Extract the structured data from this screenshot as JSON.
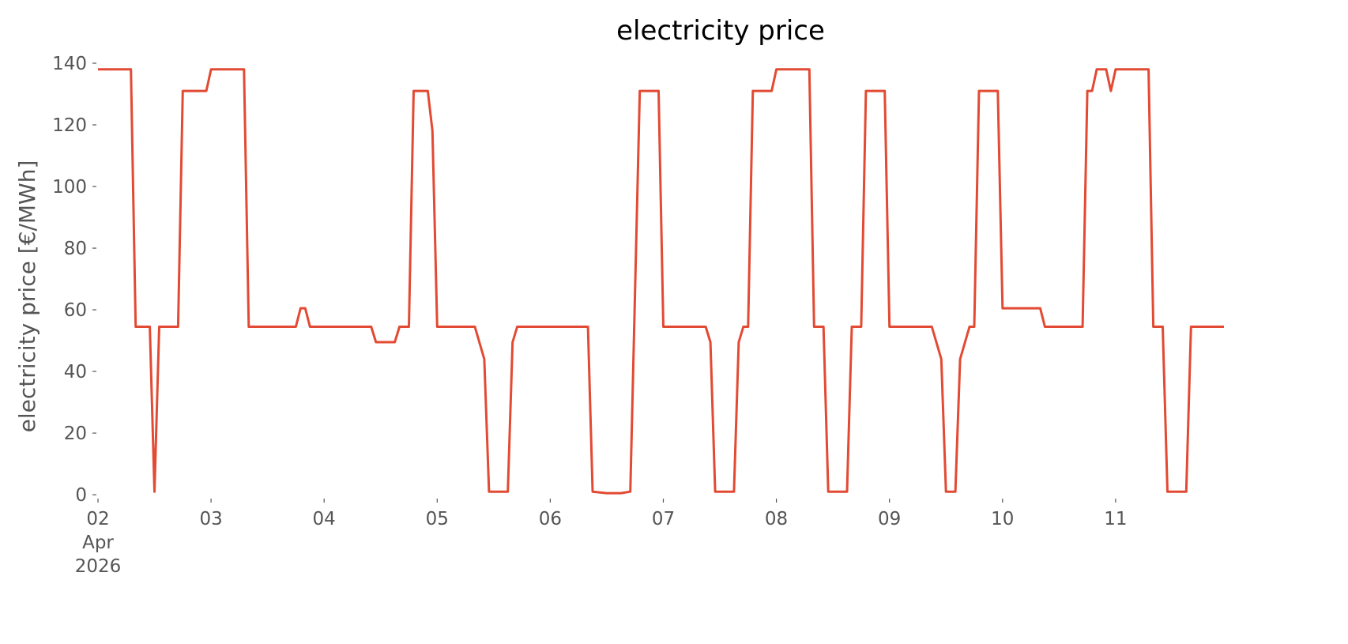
{
  "chart_data": {
    "type": "line",
    "title": "electricity price",
    "ylabel": "electricity price [€/MWh]",
    "x": [
      "2026-04-02T00:00",
      "2026-04-02T07:00",
      "2026-04-02T08:00",
      "2026-04-02T11:00",
      "2026-04-02T12:00",
      "2026-04-02T13:00",
      "2026-04-02T17:00",
      "2026-04-02T18:00",
      "2026-04-02T23:00",
      "2026-04-03T00:00",
      "2026-04-03T07:00",
      "2026-04-03T08:00",
      "2026-04-03T18:00",
      "2026-04-03T19:00",
      "2026-04-03T20:00",
      "2026-04-03T21:00",
      "2026-04-04T10:00",
      "2026-04-04T11:00",
      "2026-04-04T15:00",
      "2026-04-04T16:00",
      "2026-04-04T18:00",
      "2026-04-04T19:00",
      "2026-04-04T22:00",
      "2026-04-04T23:00",
      "2026-04-05T00:00",
      "2026-04-05T08:00",
      "2026-04-05T10:00",
      "2026-04-05T11:00",
      "2026-04-05T15:00",
      "2026-04-05T16:00",
      "2026-04-05T17:00",
      "2026-04-06T08:00",
      "2026-04-06T09:00",
      "2026-04-06T12:00",
      "2026-04-06T15:00",
      "2026-04-06T17:00",
      "2026-04-06T19:00",
      "2026-04-06T23:00",
      "2026-04-07T00:00",
      "2026-04-07T09:00",
      "2026-04-07T10:00",
      "2026-04-07T11:00",
      "2026-04-07T15:00",
      "2026-04-07T16:00",
      "2026-04-07T17:00",
      "2026-04-07T18:00",
      "2026-04-07T19:00",
      "2026-04-07T23:00",
      "2026-04-08T00:00",
      "2026-04-08T07:00",
      "2026-04-08T08:00",
      "2026-04-08T10:00",
      "2026-04-08T11:00",
      "2026-04-08T15:00",
      "2026-04-08T16:00",
      "2026-04-08T18:00",
      "2026-04-08T19:00",
      "2026-04-08T23:00",
      "2026-04-09T00:00",
      "2026-04-09T09:00",
      "2026-04-09T11:00",
      "2026-04-09T12:00",
      "2026-04-09T14:00",
      "2026-04-09T15:00",
      "2026-04-09T17:00",
      "2026-04-09T18:00",
      "2026-04-09T19:00",
      "2026-04-09T23:00",
      "2026-04-10T00:00",
      "2026-04-10T08:00",
      "2026-04-10T09:00",
      "2026-04-10T17:00",
      "2026-04-10T18:00",
      "2026-04-10T19:00",
      "2026-04-10T20:00",
      "2026-04-10T22:00",
      "2026-04-10T23:00",
      "2026-04-11T00:00",
      "2026-04-11T07:00",
      "2026-04-11T08:00",
      "2026-04-11T10:00",
      "2026-04-11T11:00",
      "2026-04-11T15:00",
      "2026-04-11T16:00",
      "2026-04-11T23:00"
    ],
    "series": [
      {
        "color": "#e24a33",
        "values": [
          138,
          138,
          54.5,
          54.5,
          1,
          54.5,
          54.5,
          131,
          131,
          138,
          138,
          54.5,
          54.5,
          60.5,
          60.5,
          54.5,
          54.5,
          49.5,
          49.5,
          54.5,
          54.5,
          131,
          131,
          118,
          54.5,
          54.5,
          44,
          1,
          1,
          49.5,
          54.5,
          54.5,
          1,
          0.5,
          0.5,
          1,
          131,
          131,
          54.5,
          54.5,
          49.5,
          1,
          1,
          49.5,
          54.5,
          54.5,
          131,
          131,
          138,
          138,
          54.5,
          54.5,
          1,
          1,
          54.5,
          54.5,
          131,
          131,
          54.5,
          54.5,
          44,
          1,
          1,
          44,
          54.5,
          54.5,
          131,
          131,
          60.5,
          60.5,
          54.5,
          54.5,
          131,
          131,
          138,
          138,
          131,
          138,
          138,
          54.5,
          54.5,
          1,
          1,
          54.5,
          54.5
        ]
      }
    ],
    "xlim": [
      "2026-04-02T00:00",
      "2026-04-11T23:00"
    ],
    "xticks": [
      {
        "value": "2026-04-02T00:00",
        "label": "02\nApr\n2026"
      },
      {
        "value": "2026-04-03T00:00",
        "label": "03"
      },
      {
        "value": "2026-04-04T00:00",
        "label": "04"
      },
      {
        "value": "2026-04-05T00:00",
        "label": "05"
      },
      {
        "value": "2026-04-06T00:00",
        "label": "06"
      },
      {
        "value": "2026-04-07T00:00",
        "label": "07"
      },
      {
        "value": "2026-04-08T00:00",
        "label": "08"
      },
      {
        "value": "2026-04-09T00:00",
        "label": "09"
      },
      {
        "value": "2026-04-10T00:00",
        "label": "10"
      },
      {
        "value": "2026-04-11T00:00",
        "label": "11"
      }
    ],
    "ylim": [
      -1,
      141
    ],
    "yticks": [
      0,
      20,
      40,
      60,
      80,
      100,
      120,
      140
    ],
    "grid": false
  }
}
